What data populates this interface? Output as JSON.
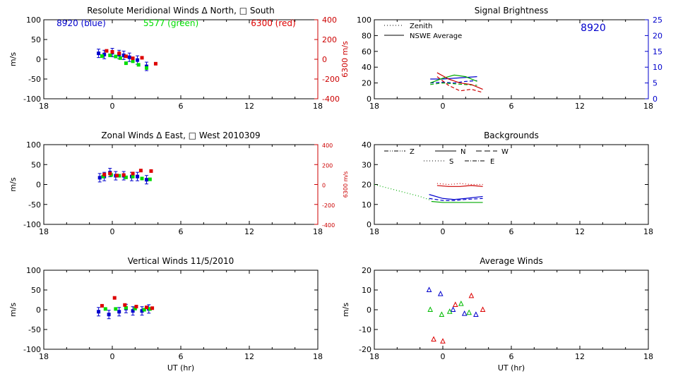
{
  "chart_data": [
    {
      "id": "meridional",
      "type": "scatter",
      "title": "Resolute Meridional Winds Δ North, □ South",
      "xlabel": "",
      "ylabel": "m/s",
      "y2label": "6300 m/s",
      "xlim": [
        18,
        42
      ],
      "ylim": [
        -100,
        100
      ],
      "y2lim": [
        -400,
        400
      ],
      "x_ticks": [
        18,
        24,
        30,
        36,
        42
      ],
      "x_tick_labels": [
        "18",
        "0",
        "6",
        "12",
        "18"
      ],
      "y_ticks": [
        -100,
        -50,
        0,
        50,
        100
      ],
      "y_tick_labels": [
        "-100",
        "-50",
        "0",
        "50",
        "100"
      ],
      "y2_ticks": [
        -400,
        -200,
        0,
        200,
        400
      ],
      "y2_tick_labels": [
        "-400",
        "-200",
        "0",
        "200",
        "400"
      ],
      "legend": [
        {
          "text": "8920 (blue)",
          "color": "#0000cc"
        },
        {
          "text": "5577 (green)",
          "color": "#00dd00"
        },
        {
          "text": "6300 (red)",
          "color": "#dd0000"
        }
      ],
      "series": [
        {
          "name": "8920",
          "color": "#0000cc",
          "axis": "left",
          "errorbars": true,
          "points": [
            [
              22.8,
              15
            ],
            [
              23.3,
              12
            ],
            [
              24.0,
              17
            ],
            [
              24.6,
              12
            ],
            [
              25.0,
              10
            ],
            [
              25.5,
              5
            ],
            [
              26.2,
              -2
            ],
            [
              27.0,
              -18
            ]
          ]
        },
        {
          "name": "5577",
          "color": "#00dd00",
          "axis": "left",
          "points": [
            [
              23.1,
              8
            ],
            [
              23.8,
              10
            ],
            [
              24.3,
              7
            ],
            [
              24.7,
              3
            ],
            [
              25.2,
              -10
            ],
            [
              25.8,
              -5
            ],
            [
              26.3,
              -14
            ],
            [
              27.0,
              -22
            ]
          ]
        },
        {
          "name": "6300",
          "color": "#dd0000",
          "axis": "right",
          "points": [
            [
              23.5,
              85
            ],
            [
              24.0,
              75
            ],
            [
              24.6,
              60
            ],
            [
              25.2,
              30
            ],
            [
              25.8,
              10
            ],
            [
              26.6,
              15
            ],
            [
              27.8,
              -45
            ]
          ]
        }
      ]
    },
    {
      "id": "zonal",
      "type": "scatter",
      "title": "Zonal Winds Δ East, □ West 2010309",
      "xlabel": "",
      "ylabel": "m/s",
      "y2label": "6300 m/s",
      "xlim": [
        18,
        42
      ],
      "ylim": [
        -100,
        100
      ],
      "y2lim": [
        -400,
        400
      ],
      "x_ticks": [
        18,
        24,
        30,
        36,
        42
      ],
      "x_tick_labels": [
        "18",
        "0",
        "6",
        "12",
        "18"
      ],
      "y_ticks": [
        -100,
        -50,
        0,
        50,
        100
      ],
      "y_tick_labels": [
        "-100",
        "-50",
        "0",
        "50",
        "100"
      ],
      "y2_ticks": [
        -400,
        -200,
        0,
        200,
        400
      ],
      "y2_tick_labels": [
        "-400",
        "-200",
        "0",
        "200",
        "400"
      ],
      "series": [
        {
          "name": "8920",
          "color": "#0000cc",
          "axis": "left",
          "errorbars": true,
          "points": [
            [
              22.9,
              17
            ],
            [
              23.3,
              20
            ],
            [
              23.8,
              30
            ],
            [
              24.3,
              22
            ],
            [
              25.0,
              22
            ],
            [
              25.7,
              20
            ],
            [
              26.2,
              20
            ],
            [
              27.0,
              12
            ]
          ]
        },
        {
          "name": "5577",
          "color": "#00dd00",
          "axis": "left",
          "points": [
            [
              23.2,
              20
            ],
            [
              23.9,
              24
            ],
            [
              24.6,
              22
            ],
            [
              25.2,
              18
            ],
            [
              25.8,
              20
            ],
            [
              26.6,
              15
            ],
            [
              27.3,
              13
            ]
          ]
        },
        {
          "name": "6300",
          "color": "#dd0000",
          "axis": "right",
          "points": [
            [
              23.3,
              100
            ],
            [
              23.8,
              110
            ],
            [
              24.4,
              90
            ],
            [
              25.0,
              95
            ],
            [
              25.8,
              110
            ],
            [
              26.5,
              140
            ],
            [
              27.4,
              135
            ]
          ]
        }
      ]
    },
    {
      "id": "vertical",
      "type": "scatter",
      "title": "Vertical Winds 11/5/2010",
      "xlabel": "UT (hr)",
      "ylabel": "m/s",
      "xlim": [
        18,
        42
      ],
      "ylim": [
        -100,
        100
      ],
      "x_ticks": [
        18,
        24,
        30,
        36,
        42
      ],
      "x_tick_labels": [
        "18",
        "0",
        "6",
        "12",
        "18"
      ],
      "y_ticks": [
        -100,
        -50,
        0,
        50,
        100
      ],
      "y_tick_labels": [
        "-100",
        "-50",
        "0",
        "50",
        "100"
      ],
      "series": [
        {
          "name": "8920",
          "color": "#0000cc",
          "axis": "left",
          "errorbars": true,
          "points": [
            [
              22.8,
              -5
            ],
            [
              23.7,
              -12
            ],
            [
              24.6,
              -5
            ],
            [
              25.2,
              3
            ],
            [
              25.8,
              -3
            ],
            [
              26.6,
              -3
            ],
            [
              27.2,
              2
            ]
          ]
        },
        {
          "name": "5577",
          "color": "#00dd00",
          "axis": "left",
          "points": [
            [
              23.4,
              2
            ],
            [
              24.3,
              2
            ],
            [
              25.2,
              5
            ],
            [
              26.0,
              3
            ],
            [
              26.8,
              0
            ],
            [
              27.3,
              2
            ]
          ]
        },
        {
          "name": "6300",
          "color": "#dd0000",
          "axis": "left",
          "points": [
            [
              23.1,
              10
            ],
            [
              24.2,
              30
            ],
            [
              25.1,
              12
            ],
            [
              26.1,
              8
            ],
            [
              27.0,
              6
            ],
            [
              27.5,
              4
            ]
          ]
        }
      ]
    },
    {
      "id": "brightness",
      "type": "line",
      "title": "Signal Brightness",
      "xlabel": "",
      "ylabel": "",
      "xlim": [
        18,
        42
      ],
      "ylim": [
        0,
        100
      ],
      "y2lim": [
        0,
        25
      ],
      "x_ticks": [
        18,
        24,
        30,
        36,
        42
      ],
      "x_tick_labels": [
        "18",
        "0",
        "6",
        "12",
        "18"
      ],
      "y_ticks": [
        0,
        20,
        40,
        60,
        80,
        100
      ],
      "y_tick_labels": [
        "0",
        "20",
        "40",
        "60",
        "80",
        "100"
      ],
      "y2_ticks": [
        0,
        5,
        10,
        15,
        20,
        25
      ],
      "y2_tick_labels": [
        "0",
        "5",
        "10",
        "15",
        "20",
        "25"
      ],
      "annotation": "8920",
      "legend": [
        {
          "text": "Zenith",
          "style": "dotted"
        },
        {
          "text": "NSWE Average",
          "style": "solid"
        }
      ],
      "series": [
        {
          "name": "blue NSWE",
          "color": "#0000cc",
          "style": "solid",
          "x": [
            22.9,
            24.0,
            25.0,
            26.0,
            27.0
          ],
          "y": [
            25,
            25,
            26,
            27,
            28
          ]
        },
        {
          "name": "blue zenith",
          "color": "#0000cc",
          "style": "dashed",
          "x": [
            22.9,
            24.0,
            25.0,
            26.0,
            27.0
          ],
          "y": [
            20,
            21,
            20,
            22,
            23
          ]
        },
        {
          "name": "green NSWE",
          "color": "#00aa00",
          "style": "solid",
          "x": [
            22.9,
            24.0,
            25.0,
            26.0,
            27.0
          ],
          "y": [
            20,
            26,
            30,
            28,
            22
          ]
        },
        {
          "name": "green zenith",
          "color": "#00aa00",
          "style": "dashed",
          "x": [
            22.9,
            24.0,
            25.0,
            26.0,
            27.0
          ],
          "y": [
            18,
            20,
            19,
            18,
            17
          ]
        },
        {
          "name": "red NSWE",
          "color": "#cc0000",
          "style": "solid",
          "x": [
            23.5,
            24.5,
            25.5,
            26.5,
            27.5
          ],
          "y": [
            33,
            25,
            20,
            18,
            12
          ]
        },
        {
          "name": "red zenith",
          "color": "#cc0000",
          "style": "dashed",
          "x": [
            23.5,
            24.5,
            25.5,
            26.5,
            27.5
          ],
          "y": [
            28,
            17,
            10,
            12,
            8
          ]
        }
      ]
    },
    {
      "id": "backgrounds",
      "type": "line",
      "title": "Backgrounds",
      "xlabel": "",
      "ylabel": "",
      "xlim": [
        18,
        42
      ],
      "ylim": [
        0,
        40
      ],
      "x_ticks": [
        18,
        24,
        30,
        36,
        42
      ],
      "x_tick_labels": [
        "18",
        "0",
        "6",
        "12",
        "18"
      ],
      "y_ticks": [
        0,
        10,
        20,
        30,
        40
      ],
      "y_tick_labels": [
        "0",
        "10",
        "20",
        "30",
        "40"
      ],
      "legend": [
        {
          "text": "Z",
          "style": "dashdotdot"
        },
        {
          "text": "N",
          "style": "solid"
        },
        {
          "text": "W",
          "style": "longdash"
        },
        {
          "text": "S",
          "style": "dotted"
        },
        {
          "text": "E",
          "style": "dashdot"
        }
      ],
      "series": [
        {
          "name": "green early",
          "color": "#00aa00",
          "style": "dotted",
          "x": [
            18.0,
            20.0,
            22.0,
            23.0
          ],
          "y": [
            20,
            17,
            14,
            12
          ]
        },
        {
          "name": "green",
          "color": "#00aa00",
          "style": "solid",
          "x": [
            23.0,
            24.0,
            25.0,
            26.0,
            27.5
          ],
          "y": [
            11.5,
            11,
            11,
            11,
            11
          ]
        },
        {
          "name": "blue 1",
          "color": "#0000cc",
          "style": "solid",
          "x": [
            22.8,
            24.0,
            25.0,
            26.0,
            27.5
          ],
          "y": [
            15,
            13,
            12.5,
            13,
            14
          ]
        },
        {
          "name": "blue 2",
          "color": "#0000cc",
          "style": "dashed",
          "x": [
            22.8,
            24.0,
            25.0,
            26.0,
            27.5
          ],
          "y": [
            13,
            12,
            12,
            12.5,
            13
          ]
        },
        {
          "name": "red 1",
          "color": "#cc0000",
          "style": "solid",
          "x": [
            23.5,
            24.5,
            25.5,
            26.5,
            27.5
          ],
          "y": [
            19.5,
            19,
            19,
            19.5,
            19
          ]
        },
        {
          "name": "red 2",
          "color": "#cc0000",
          "style": "dotted",
          "x": [
            23.5,
            24.5,
            25.5,
            26.5,
            27.5
          ],
          "y": [
            20.5,
            20,
            20.5,
            20,
            20
          ]
        }
      ]
    },
    {
      "id": "average",
      "type": "scatter",
      "title": "Average Winds",
      "xlabel": "UT (hr)",
      "ylabel": "m/s",
      "xlim": [
        18,
        42
      ],
      "ylim": [
        -20,
        20
      ],
      "x_ticks": [
        18,
        24,
        30,
        36,
        42
      ],
      "x_tick_labels": [
        "18",
        "0",
        "6",
        "12",
        "18"
      ],
      "y_ticks": [
        -20,
        -10,
        0,
        10,
        20
      ],
      "y_tick_labels": [
        "-20",
        "-10",
        "0",
        "10",
        "20"
      ],
      "series": [
        {
          "name": "8920",
          "color": "#0000cc",
          "marker": "triangle",
          "points": [
            [
              22.8,
              10
            ],
            [
              23.8,
              8
            ],
            [
              24.9,
              0
            ],
            [
              25.9,
              -2
            ],
            [
              26.9,
              -2.5
            ]
          ]
        },
        {
          "name": "5577",
          "color": "#00bb00",
          "marker": "triangle",
          "points": [
            [
              22.9,
              0
            ],
            [
              23.9,
              -2.5
            ],
            [
              24.6,
              -1
            ],
            [
              25.6,
              3
            ],
            [
              26.3,
              -1.5
            ]
          ]
        },
        {
          "name": "6300",
          "color": "#dd0000",
          "marker": "triangle",
          "points": [
            [
              23.2,
              -15
            ],
            [
              24.0,
              -16
            ],
            [
              25.1,
              2.5
            ],
            [
              26.5,
              7
            ],
            [
              27.5,
              0
            ]
          ]
        }
      ]
    }
  ]
}
